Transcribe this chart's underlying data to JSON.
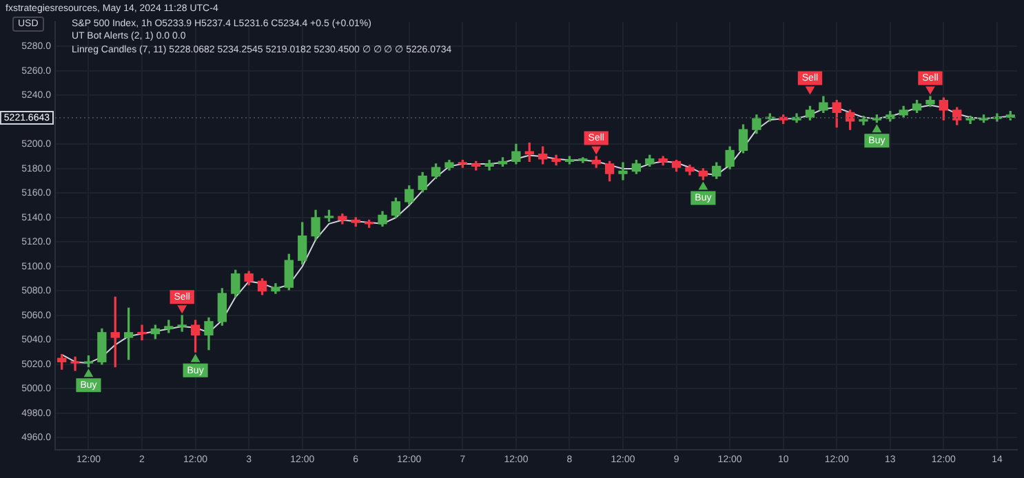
{
  "chart_data": {
    "type": "candlestick",
    "title": "fxstrategiesresources, May 14, 2024 11:28 UTC-4",
    "subtitle": "S&P 500 Index, 1h  O5233.9 H5237.4 L5231.6 C5234.4 +0.5 (+0.01%)",
    "annotations": [
      "USD",
      "UT Bot Alerts (2, 1) 0.0 0.0",
      "Linreg Candles (7, 11) 5228.0682 5234.2545 5219.0182 5230.4500 ∅ ∅ ∅ ∅ 5226.0734"
    ],
    "categories": [
      null,
      null,
      "12:00",
      null,
      null,
      null,
      "2",
      null,
      null,
      null,
      "12:00",
      null,
      null,
      null,
      "3",
      null,
      null,
      null,
      "12:00",
      null,
      null,
      null,
      "6",
      null,
      null,
      null,
      "12:00",
      null,
      null,
      null,
      "7",
      null,
      null,
      null,
      "12:00",
      null,
      null,
      null,
      "8",
      null,
      null,
      null,
      "12:00",
      null,
      null,
      null,
      "9",
      null,
      null,
      null,
      "12:00",
      null,
      null,
      null,
      "10",
      null,
      null,
      null,
      "12:00",
      null,
      null,
      null,
      "13",
      null,
      null,
      null,
      "12:00",
      null,
      null,
      null,
      "14",
      null
    ],
    "ohlc": [
      [
        5025,
        5028,
        5016,
        5022
      ],
      [
        5022,
        5026,
        5015,
        5021
      ],
      [
        5021,
        5027,
        5018,
        5022
      ],
      [
        5022,
        5049,
        5020,
        5046
      ],
      [
        5046,
        5075,
        5018,
        5042
      ],
      [
        5042,
        5066,
        5024,
        5046
      ],
      [
        5046,
        5052,
        5040,
        5045
      ],
      [
        5045,
        5052,
        5041,
        5049
      ],
      [
        5049,
        5056,
        5046,
        5051
      ],
      [
        5051,
        5060,
        5047,
        5052
      ],
      [
        5052,
        5056,
        5030,
        5044
      ],
      [
        5044,
        5058,
        5032,
        5055
      ],
      [
        5055,
        5082,
        5052,
        5078
      ],
      [
        5078,
        5097,
        5075,
        5094
      ],
      [
        5094,
        5096,
        5085,
        5088
      ],
      [
        5088,
        5090,
        5077,
        5080
      ],
      [
        5080,
        5086,
        5078,
        5083
      ],
      [
        5083,
        5110,
        5081,
        5105
      ],
      [
        5105,
        5136,
        5102,
        5125
      ],
      [
        5125,
        5146,
        5122,
        5140
      ],
      [
        5140,
        5146,
        5137,
        5141
      ],
      [
        5141,
        5143,
        5135,
        5138
      ],
      [
        5138,
        5140,
        5133,
        5136
      ],
      [
        5136,
        5138,
        5132,
        5135
      ],
      [
        5135,
        5145,
        5133,
        5142
      ],
      [
        5142,
        5156,
        5140,
        5153
      ],
      [
        5153,
        5166,
        5151,
        5163
      ],
      [
        5163,
        5177,
        5161,
        5174
      ],
      [
        5174,
        5184,
        5172,
        5181
      ],
      [
        5181,
        5187,
        5179,
        5185
      ],
      [
        5185,
        5187,
        5181,
        5184
      ],
      [
        5184,
        5186,
        5179,
        5182
      ],
      [
        5182,
        5187,
        5179,
        5184
      ],
      [
        5184,
        5189,
        5182,
        5186
      ],
      [
        5186,
        5200,
        5184,
        5194
      ],
      [
        5194,
        5201,
        5186,
        5192
      ],
      [
        5192,
        5198,
        5184,
        5188
      ],
      [
        5188,
        5191,
        5183,
        5186
      ],
      [
        5186,
        5190,
        5184,
        5187
      ],
      [
        5187,
        5189,
        5185,
        5187
      ],
      [
        5187,
        5190,
        5181,
        5184
      ],
      [
        5184,
        5186,
        5170,
        5176
      ],
      [
        5176,
        5185,
        5171,
        5178
      ],
      [
        5178,
        5187,
        5176,
        5184
      ],
      [
        5184,
        5191,
        5182,
        5188
      ],
      [
        5188,
        5190,
        5183,
        5186
      ],
      [
        5186,
        5187,
        5178,
        5181
      ],
      [
        5181,
        5183,
        5175,
        5178
      ],
      [
        5178,
        5180,
        5171,
        5174
      ],
      [
        5174,
        5185,
        5172,
        5182
      ],
      [
        5182,
        5198,
        5180,
        5195
      ],
      [
        5195,
        5216,
        5193,
        5212
      ],
      [
        5212,
        5224,
        5209,
        5221
      ],
      [
        5221,
        5225,
        5219,
        5222
      ],
      [
        5222,
        5224,
        5217,
        5220
      ],
      [
        5220,
        5225,
        5218,
        5222
      ],
      [
        5222,
        5231,
        5220,
        5228
      ],
      [
        5228,
        5239,
        5226,
        5234
      ],
      [
        5234,
        5236,
        5214,
        5226
      ],
      [
        5226,
        5228,
        5212,
        5219
      ],
      [
        5219,
        5223,
        5216,
        5220
      ],
      [
        5220,
        5224,
        5218,
        5221
      ],
      [
        5221,
        5227,
        5219,
        5224
      ],
      [
        5224,
        5231,
        5222,
        5228
      ],
      [
        5228,
        5236,
        5226,
        5233
      ],
      [
        5233,
        5239,
        5231,
        5236
      ],
      [
        5236,
        5238,
        5220,
        5228
      ],
      [
        5228,
        5230,
        5216,
        5220
      ],
      [
        5220,
        5223,
        5217,
        5220
      ],
      [
        5220,
        5224,
        5218,
        5221
      ],
      [
        5221,
        5225,
        5219,
        5222
      ],
      [
        5222,
        5227,
        5220,
        5224
      ]
    ],
    "colors": [
      "#f23645",
      "#f23645",
      "#4caf50",
      "#4caf50",
      "#f23645",
      "#4caf50",
      "#f23645",
      "#4caf50",
      "#4caf50",
      "#4caf50",
      "#f23645",
      "#4caf50",
      "#4caf50",
      "#4caf50",
      "#f23645",
      "#f23645",
      "#4caf50",
      "#4caf50",
      "#4caf50",
      "#4caf50",
      "#4caf50",
      "#f23645",
      "#f23645",
      "#f23645",
      "#4caf50",
      "#4caf50",
      "#4caf50",
      "#4caf50",
      "#4caf50",
      "#4caf50",
      "#f23645",
      "#f23645",
      "#4caf50",
      "#4caf50",
      "#4caf50",
      "#f23645",
      "#f23645",
      "#f23645",
      "#4caf50",
      "#4caf50",
      "#f23645",
      "#f23645",
      "#4caf50",
      "#4caf50",
      "#4caf50",
      "#f23645",
      "#f23645",
      "#f23645",
      "#f23645",
      "#4caf50",
      "#4caf50",
      "#4caf50",
      "#4caf50",
      "#4caf50",
      "#f23645",
      "#4caf50",
      "#4caf50",
      "#4caf50",
      "#f23645",
      "#f23645",
      "#4caf50",
      "#4caf50",
      "#4caf50",
      "#4caf50",
      "#4caf50",
      "#4caf50",
      "#f23645",
      "#f23645",
      "#4caf50",
      "#4caf50",
      "#4caf50",
      "#4caf50"
    ],
    "series": [
      {
        "type": "line",
        "color": "#d1d4dc",
        "values": [
          5028,
          5022,
          5021,
          5026,
          5036,
          5043,
          5045,
          5047,
          5049,
          5051,
          5050,
          5046,
          5056,
          5075,
          5088,
          5086,
          5082,
          5085,
          5100,
          5122,
          5135,
          5138,
          5137,
          5136,
          5135,
          5140,
          5150,
          5162,
          5173,
          5182,
          5184,
          5184,
          5184,
          5185,
          5188,
          5191,
          5190,
          5188,
          5187,
          5187,
          5186,
          5183,
          5180,
          5180,
          5184,
          5186,
          5185,
          5181,
          5176,
          5175,
          5183,
          5197,
          5212,
          5220,
          5221,
          5221,
          5224,
          5229,
          5230,
          5226,
          5222,
          5221,
          5223,
          5226,
          5230,
          5232,
          5230,
          5225,
          5222,
          5221,
          5222,
          5223
        ]
      },
      {
        "type": "scatter",
        "color": "#4caf50",
        "marker": "triangle",
        "values": [
          null,
          null,
          5012,
          null,
          null,
          null,
          null,
          null,
          null,
          null,
          5024,
          null,
          null,
          null,
          null,
          null,
          null,
          null,
          null,
          null,
          null,
          null,
          null,
          null,
          null,
          null,
          null,
          null,
          null,
          null,
          null,
          null,
          null,
          null,
          null,
          null,
          null,
          null,
          null,
          null,
          null,
          null,
          null,
          null,
          null,
          null,
          null,
          null,
          5165,
          null,
          null,
          null,
          null,
          null,
          null,
          null,
          null,
          null,
          null,
          null,
          null,
          5212,
          null,
          null,
          null,
          null,
          null,
          null,
          null,
          null,
          null,
          null
        ],
        "value_labels": [
          null,
          null,
          "Buy",
          null,
          null,
          null,
          null,
          null,
          null,
          null,
          "Buy",
          null,
          null,
          null,
          null,
          null,
          null,
          null,
          null,
          null,
          null,
          null,
          null,
          null,
          null,
          null,
          null,
          null,
          null,
          null,
          null,
          null,
          null,
          null,
          null,
          null,
          null,
          null,
          null,
          null,
          null,
          null,
          null,
          null,
          null,
          null,
          null,
          null,
          "Buy",
          null,
          null,
          null,
          null,
          null,
          null,
          null,
          null,
          null,
          null,
          null,
          null,
          "Buy",
          null,
          null,
          null,
          null,
          null,
          null,
          null,
          null,
          null,
          null
        ]
      },
      {
        "type": "scatter",
        "color": "#f23645",
        "marker": "triangle",
        "values": [
          null,
          null,
          null,
          null,
          null,
          null,
          null,
          null,
          null,
          5066,
          null,
          null,
          null,
          null,
          null,
          null,
          null,
          null,
          null,
          null,
          null,
          null,
          null,
          null,
          null,
          null,
          null,
          null,
          null,
          null,
          null,
          null,
          null,
          null,
          null,
          null,
          null,
          null,
          null,
          null,
          5196,
          null,
          null,
          null,
          null,
          null,
          null,
          null,
          null,
          null,
          null,
          null,
          null,
          null,
          null,
          null,
          5245,
          null,
          null,
          null,
          null,
          null,
          null,
          null,
          null,
          5245,
          null,
          null,
          null,
          null,
          null,
          null
        ],
        "value_labels": [
          null,
          null,
          null,
          null,
          null,
          null,
          null,
          null,
          null,
          "Sell",
          null,
          null,
          null,
          null,
          null,
          null,
          null,
          null,
          null,
          null,
          null,
          null,
          null,
          null,
          null,
          null,
          null,
          null,
          null,
          null,
          null,
          null,
          null,
          null,
          null,
          null,
          null,
          null,
          null,
          null,
          "Sell",
          null,
          null,
          null,
          null,
          null,
          null,
          null,
          null,
          null,
          null,
          null,
          null,
          null,
          null,
          null,
          "Sell",
          null,
          null,
          null,
          null,
          null,
          null,
          null,
          null,
          "Sell",
          null,
          null,
          null,
          null,
          null,
          null
        ]
      }
    ],
    "ref_lines": [
      {
        "axis": "y",
        "value": 5221.6643,
        "label": "5221.6643",
        "color": "#434651",
        "line_style": "dotted"
      }
    ],
    "ylim": [
      4950,
      5300
    ],
    "yticks": [
      {
        "value": 4960,
        "label": "4960.0"
      },
      {
        "value": 4980,
        "label": "4980.0"
      },
      {
        "value": 5000,
        "label": "5000.0"
      },
      {
        "value": 5020,
        "label": "5020.0"
      },
      {
        "value": 5040,
        "label": "5040.0"
      },
      {
        "value": 5060,
        "label": "5060.0"
      },
      {
        "value": 5080,
        "label": "5080.0"
      },
      {
        "value": 5100,
        "label": "5100.0"
      },
      {
        "value": 5120,
        "label": "5120.0"
      },
      {
        "value": 5140,
        "label": "5140.0"
      },
      {
        "value": 5160,
        "label": "5160.0"
      },
      {
        "value": 5180,
        "label": "5180.0"
      },
      {
        "value": 5200,
        "label": "5200.0"
      },
      {
        "value": 5240,
        "label": "5240.0"
      },
      {
        "value": 5260,
        "label": "5260.0"
      },
      {
        "value": 5280,
        "label": "5280.0"
      }
    ],
    "grid": true,
    "legend": false
  }
}
